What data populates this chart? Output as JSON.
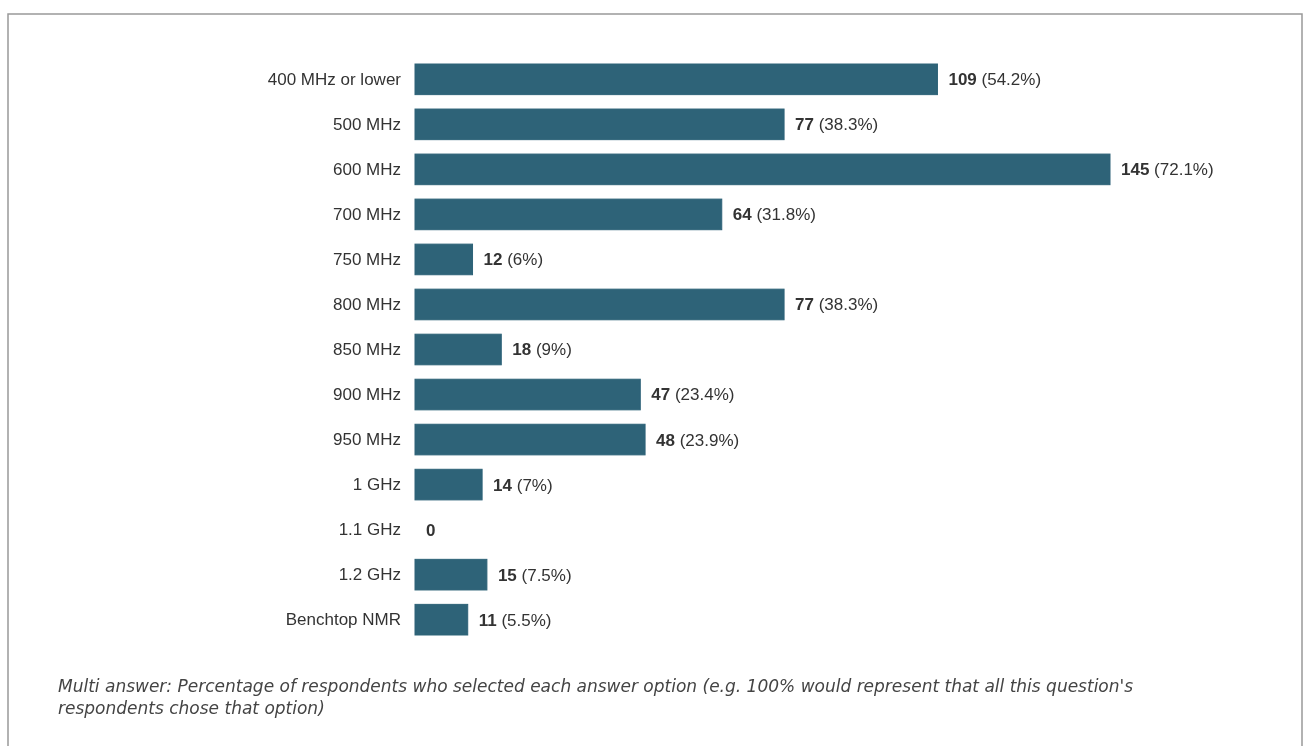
{
  "chart_data": {
    "type": "bar",
    "orientation": "horizontal",
    "categories": [
      "400 MHz or lower",
      "500 MHz",
      "600 MHz",
      "700 MHz",
      "750 MHz",
      "800 MHz",
      "850 MHz",
      "900 MHz",
      "950 MHz",
      "1 GHz",
      "1.1 GHz",
      "1.2 GHz",
      "Benchtop NMR"
    ],
    "values": [
      109,
      77,
      145,
      64,
      12,
      77,
      18,
      47,
      48,
      14,
      0,
      15,
      11
    ],
    "value_labels": [
      "109 (54.2%)",
      "77 (38.3%)",
      "145 (72.1%)",
      "64 (31.8%)",
      "12 (6%)",
      "77 (38.3%)",
      "18 (9%)",
      "47 (23.4%)",
      "48 (23.9%)",
      "14 (7%)",
      "0",
      "15 (7.5%)",
      "11 (5.5%)"
    ],
    "color": "#2e6378",
    "annotations": [
      "Multi answer: Percentage of respondents who selected each answer option (e.g. 100% would represent that all this question's respondents chose that option)"
    ]
  }
}
